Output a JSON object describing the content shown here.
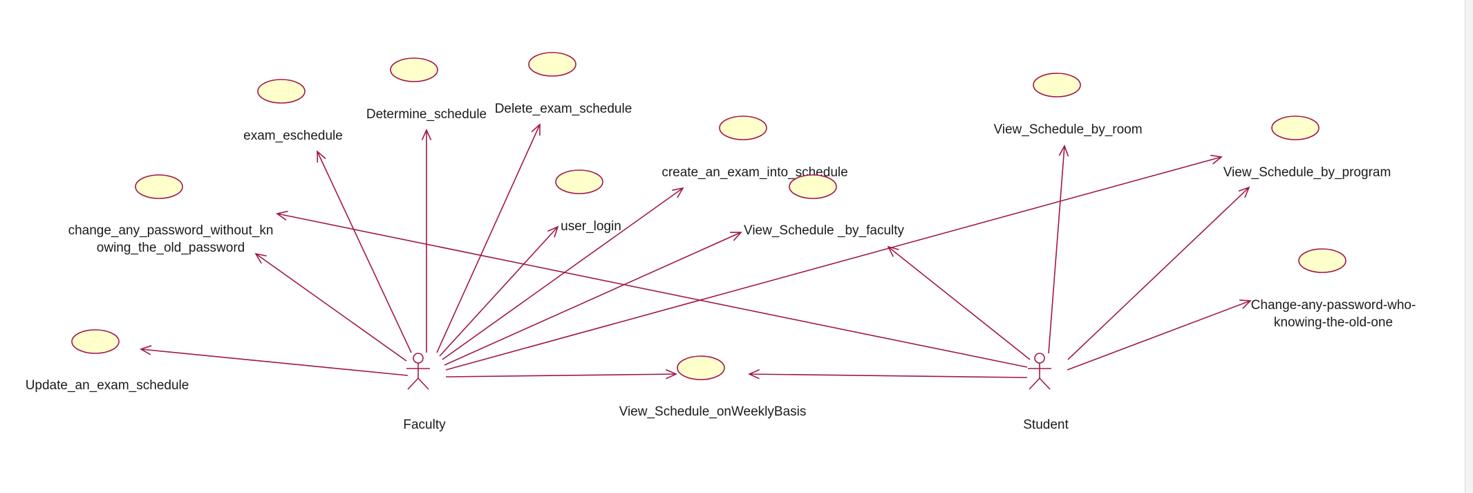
{
  "diagram": {
    "type": "use-case",
    "colors": {
      "line": "#a0164a",
      "usecase_fill": "#ffffcc",
      "background": "#ffffff"
    },
    "actors": [
      {
        "id": "faculty",
        "label": "Faculty"
      },
      {
        "id": "student",
        "label": "Student"
      }
    ],
    "use_cases": [
      {
        "id": "exam_eschedule",
        "lines": [
          "exam_eschedule"
        ]
      },
      {
        "id": "determine_schedule",
        "lines": [
          "Determine_schedule"
        ]
      },
      {
        "id": "delete_exam_schedule",
        "lines": [
          "Delete_exam_schedule"
        ]
      },
      {
        "id": "create_exam",
        "lines": [
          "create_an_exam_into_schedule"
        ]
      },
      {
        "id": "change_pw_no_old",
        "lines": [
          "change_any_password_without_kn",
          "owing_the_old_password"
        ]
      },
      {
        "id": "user_login",
        "lines": [
          "user_login"
        ]
      },
      {
        "id": "view_by_faculty",
        "lines": [
          "View_Schedule _by_faculty"
        ]
      },
      {
        "id": "update_exam",
        "lines": [
          "Update_an_exam_schedule"
        ]
      },
      {
        "id": "view_weekly",
        "lines": [
          "View_Schedule_onWeeklyBasis"
        ]
      },
      {
        "id": "view_by_room",
        "lines": [
          "View_Schedule_by_room"
        ]
      },
      {
        "id": "view_by_program",
        "lines": [
          "View_Schedule_by_program"
        ]
      },
      {
        "id": "change_pw_with_old",
        "lines": [
          "Change-any-password-who-",
          "knowing-the-old-one"
        ]
      }
    ],
    "associations": [
      {
        "from": "faculty",
        "to": "exam_eschedule"
      },
      {
        "from": "faculty",
        "to": "determine_schedule"
      },
      {
        "from": "faculty",
        "to": "delete_exam_schedule"
      },
      {
        "from": "faculty",
        "to": "create_exam"
      },
      {
        "from": "faculty",
        "to": "change_pw_no_old"
      },
      {
        "from": "faculty",
        "to": "user_login"
      },
      {
        "from": "faculty",
        "to": "view_by_faculty"
      },
      {
        "from": "faculty",
        "to": "update_exam"
      },
      {
        "from": "faculty",
        "to": "view_weekly"
      },
      {
        "from": "faculty",
        "to": "view_by_program"
      },
      {
        "from": "student",
        "to": "change_pw_no_old"
      },
      {
        "from": "student",
        "to": "view_by_faculty"
      },
      {
        "from": "student",
        "to": "view_weekly"
      },
      {
        "from": "student",
        "to": "view_by_room"
      },
      {
        "from": "student",
        "to": "view_by_program"
      },
      {
        "from": "student",
        "to": "change_pw_with_old"
      }
    ]
  }
}
